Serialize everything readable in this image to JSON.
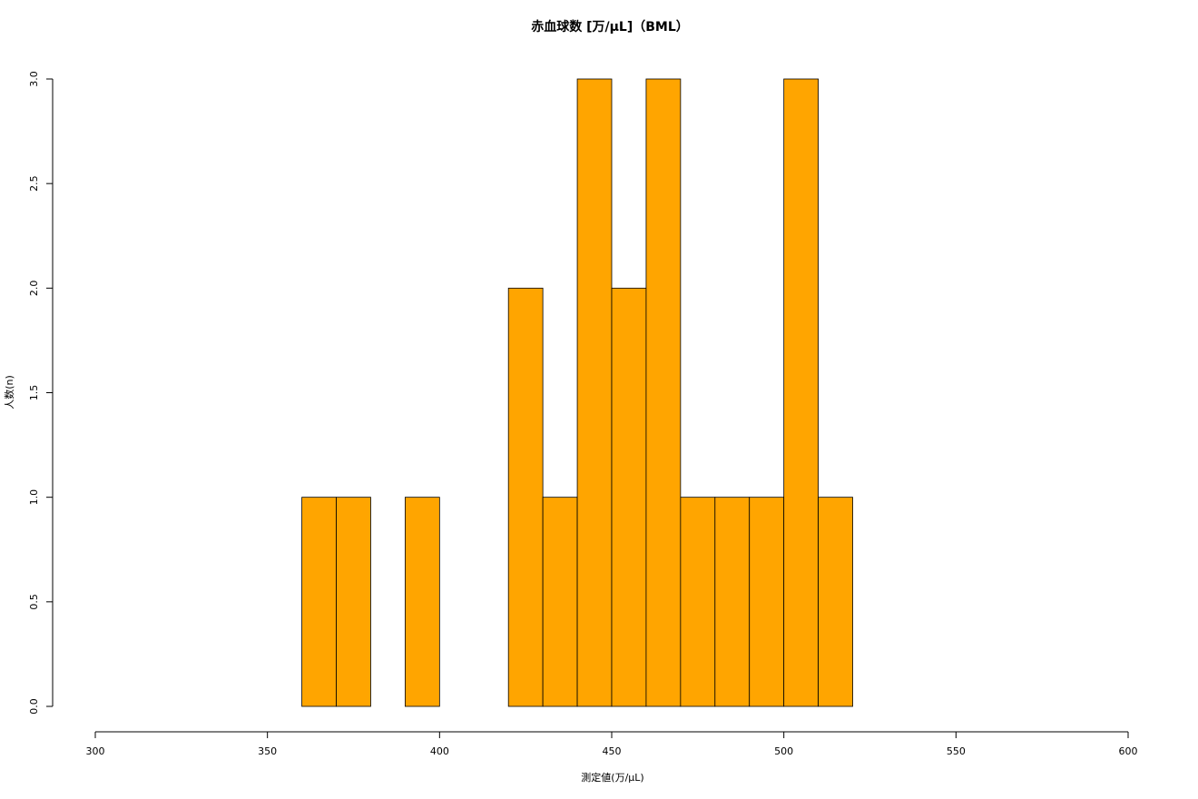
{
  "chart_data": {
    "type": "histogram",
    "title": "赤血球数 [万/μL]（BML）",
    "x_label": "測定値(万/μL)",
    "y_label": "人数(n)",
    "bins": [
      360,
      370,
      380,
      390,
      400,
      410,
      420,
      430,
      440,
      450,
      460,
      470,
      480,
      490,
      500,
      510,
      520
    ],
    "counts": [
      1,
      1,
      0,
      1,
      0,
      0,
      2,
      1,
      3,
      2,
      3,
      1,
      1,
      1,
      3,
      1
    ],
    "color": "#ffa500",
    "xlim": [
      300,
      600
    ],
    "xticks": [
      300,
      350,
      400,
      450,
      500,
      550,
      600
    ],
    "ylim": [
      0,
      3
    ],
    "yticks": [
      {
        "value": 0,
        "label": "0.0"
      },
      {
        "value": 0.5,
        "label": "0.5"
      },
      {
        "value": 1,
        "label": "1.0"
      },
      {
        "value": 1.5,
        "label": "1.5"
      },
      {
        "value": 2,
        "label": "2.0"
      },
      {
        "value": 2.5,
        "label": "2.5"
      },
      {
        "value": 3,
        "label": "3.0"
      }
    ]
  }
}
